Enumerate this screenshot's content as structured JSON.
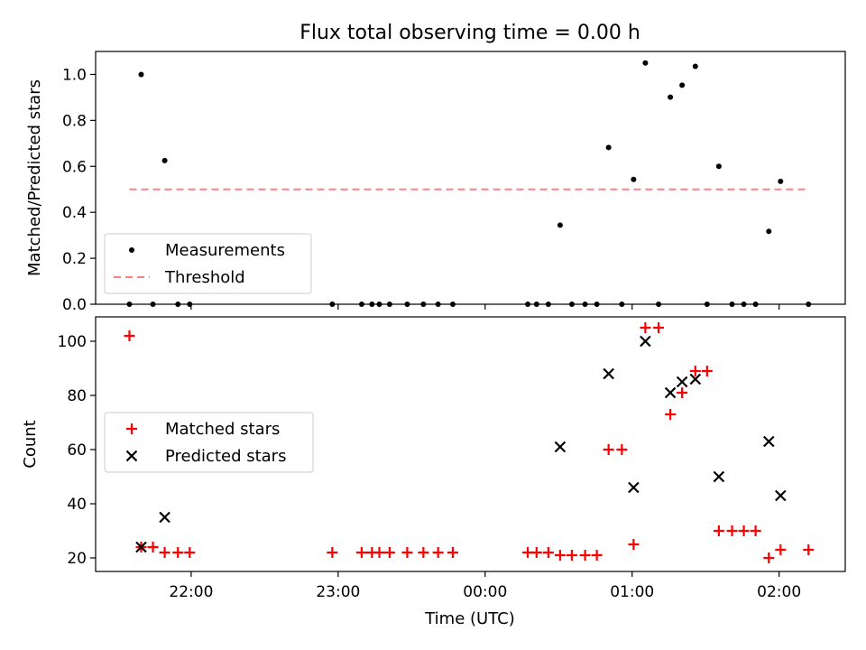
{
  "chart_data": [
    {
      "type": "scatter",
      "title": "Flux total observing time = 0.00 h",
      "xlabel": "",
      "ylabel": "Matched/Predicted stars",
      "x_unit": "UTC time (hours; values past 24 are after midnight)",
      "xlim": [
        21.35,
        26.45
      ],
      "ylim": [
        0.0,
        1.1
      ],
      "y_ticks": [
        0.0,
        0.2,
        0.4,
        0.6,
        0.8,
        1.0
      ],
      "y_tick_labels": [
        "0.0",
        "0.2",
        "0.4",
        "0.6",
        "0.8",
        "1.0"
      ],
      "x_ticks": [
        22,
        23,
        24,
        25,
        26
      ],
      "x_tick_labels": [
        "",
        "",
        "",
        "",
        ""
      ],
      "grid": false,
      "legend_position": "lower-left",
      "series": [
        {
          "name": "Measurements",
          "marker": "dot",
          "color": "#000000",
          "points": [
            [
              21.58,
              0.0
            ],
            [
              21.66,
              1.0
            ],
            [
              21.74,
              0.0
            ],
            [
              21.82,
              0.625
            ],
            [
              21.91,
              0.0
            ],
            [
              21.99,
              0.0
            ],
            [
              22.96,
              0.0
            ],
            [
              23.16,
              0.0
            ],
            [
              23.23,
              0.0
            ],
            [
              23.28,
              0.0
            ],
            [
              23.35,
              0.0
            ],
            [
              23.47,
              0.0
            ],
            [
              23.58,
              0.0
            ],
            [
              23.68,
              0.0
            ],
            [
              23.78,
              0.0
            ],
            [
              24.29,
              0.0
            ],
            [
              24.35,
              0.0
            ],
            [
              24.43,
              0.0
            ],
            [
              24.51,
              0.344
            ],
            [
              24.59,
              0.0
            ],
            [
              24.68,
              0.0
            ],
            [
              24.76,
              0.0
            ],
            [
              24.84,
              0.682
            ],
            [
              24.93,
              0.0
            ],
            [
              25.01,
              0.543
            ],
            [
              25.09,
              1.05
            ],
            [
              25.18,
              0.0
            ],
            [
              25.26,
              0.901
            ],
            [
              25.34,
              0.953
            ],
            [
              25.43,
              1.035
            ],
            [
              25.51,
              0.0
            ],
            [
              25.59,
              0.6
            ],
            [
              25.68,
              0.0
            ],
            [
              25.76,
              0.0
            ],
            [
              25.84,
              0.0
            ],
            [
              25.93,
              0.317
            ],
            [
              26.01,
              0.535
            ],
            [
              26.2,
              0.0
            ]
          ]
        },
        {
          "name": "Threshold",
          "marker": "dashed-line",
          "color": "#ff8080",
          "points": [
            [
              21.58,
              0.5
            ],
            [
              26.2,
              0.5
            ]
          ]
        }
      ]
    },
    {
      "type": "scatter",
      "title": "",
      "xlabel": "Time (UTC)",
      "ylabel": "Count",
      "x_unit": "UTC time (hours; values past 24 are after midnight)",
      "xlim": [
        21.35,
        26.45
      ],
      "ylim": [
        15,
        109
      ],
      "y_ticks": [
        20,
        40,
        60,
        80,
        100
      ],
      "y_tick_labels": [
        "20",
        "40",
        "60",
        "80",
        "100"
      ],
      "x_ticks": [
        22,
        23,
        24,
        25,
        26
      ],
      "x_tick_labels": [
        "22:00",
        "23:00",
        "00:00",
        "01:00",
        "02:00"
      ],
      "grid": false,
      "legend_position": "center-left",
      "series": [
        {
          "name": "Matched stars",
          "marker": "plus",
          "color": "#ff0000",
          "points": [
            [
              21.58,
              102
            ],
            [
              21.66,
              24
            ],
            [
              21.74,
              24
            ],
            [
              21.82,
              22
            ],
            [
              21.91,
              22
            ],
            [
              21.99,
              22
            ],
            [
              22.96,
              22
            ],
            [
              23.16,
              22
            ],
            [
              23.23,
              22
            ],
            [
              23.28,
              22
            ],
            [
              23.35,
              22
            ],
            [
              23.47,
              22
            ],
            [
              23.58,
              22
            ],
            [
              23.68,
              22
            ],
            [
              23.78,
              22
            ],
            [
              24.29,
              22
            ],
            [
              24.35,
              22
            ],
            [
              24.43,
              22
            ],
            [
              24.51,
              21
            ],
            [
              24.59,
              21
            ],
            [
              24.68,
              21
            ],
            [
              24.76,
              21
            ],
            [
              24.84,
              60
            ],
            [
              24.93,
              60
            ],
            [
              25.01,
              25
            ],
            [
              25.09,
              105
            ],
            [
              25.18,
              105
            ],
            [
              25.26,
              73
            ],
            [
              25.34,
              81
            ],
            [
              25.43,
              89
            ],
            [
              25.51,
              89
            ],
            [
              25.59,
              30
            ],
            [
              25.68,
              30
            ],
            [
              25.76,
              30
            ],
            [
              25.84,
              30
            ],
            [
              25.93,
              20
            ],
            [
              26.01,
              23
            ],
            [
              26.2,
              23
            ]
          ]
        },
        {
          "name": "Predicted stars",
          "marker": "x",
          "color": "#000000",
          "points": [
            [
              21.66,
              24
            ],
            [
              21.82,
              35
            ],
            [
              24.51,
              61
            ],
            [
              24.84,
              88
            ],
            [
              25.01,
              46
            ],
            [
              25.09,
              100
            ],
            [
              25.26,
              81
            ],
            [
              25.34,
              85
            ],
            [
              25.43,
              86
            ],
            [
              25.59,
              50
            ],
            [
              25.93,
              63
            ],
            [
              26.01,
              43
            ]
          ]
        }
      ]
    }
  ]
}
